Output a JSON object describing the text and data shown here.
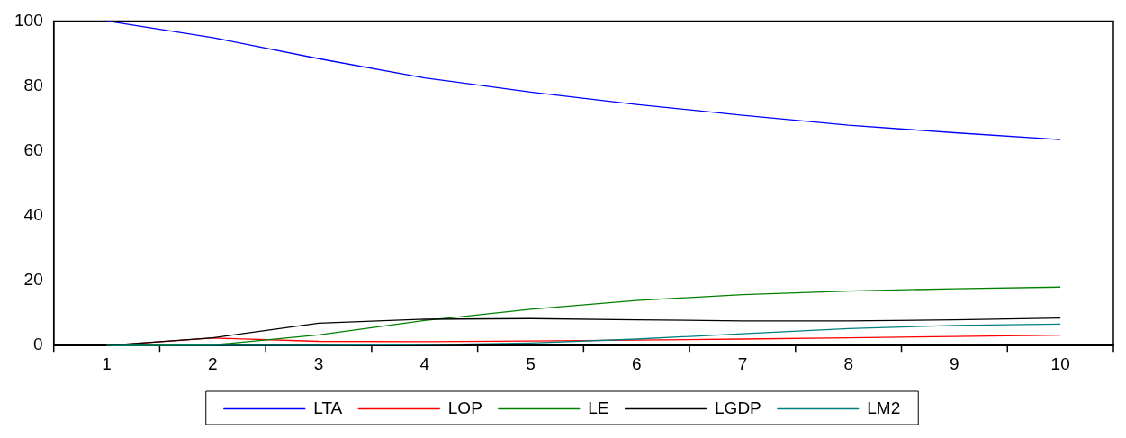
{
  "chart_data": {
    "type": "line",
    "categories": [
      "1",
      "2",
      "3",
      "4",
      "5",
      "6",
      "7",
      "8",
      "9",
      "10"
    ],
    "series": [
      {
        "name": "LTA",
        "color": "#0000ff",
        "values": [
          100,
          94.9,
          88.4,
          82.5,
          78.1,
          74.3,
          71.0,
          67.9,
          65.6,
          63.5
        ]
      },
      {
        "name": "LOP",
        "color": "#ff0000",
        "values": [
          0,
          2.3,
          1.3,
          1.2,
          1.4,
          1.7,
          2.0,
          2.4,
          2.8,
          3.2
        ]
      },
      {
        "name": "LE",
        "color": "#008000",
        "values": [
          0,
          0.2,
          3.3,
          7.7,
          11.2,
          13.9,
          15.7,
          16.8,
          17.5,
          18.0
        ]
      },
      {
        "name": "LGDP",
        "color": "#000000",
        "values": [
          0,
          2.4,
          6.9,
          8.1,
          8.3,
          7.9,
          7.6,
          7.6,
          7.9,
          8.5
        ]
      },
      {
        "name": "LM2",
        "color": "#008080",
        "values": [
          0,
          0.1,
          0.1,
          0.3,
          0.8,
          2.0,
          3.6,
          5.2,
          6.2,
          6.6
        ]
      }
    ],
    "ylim": [
      0,
      100
    ],
    "yticks": [
      0,
      20,
      40,
      60,
      80,
      100
    ],
    "grid": false,
    "legend": "bottom",
    "marker": "none",
    "line_style": "solid"
  }
}
